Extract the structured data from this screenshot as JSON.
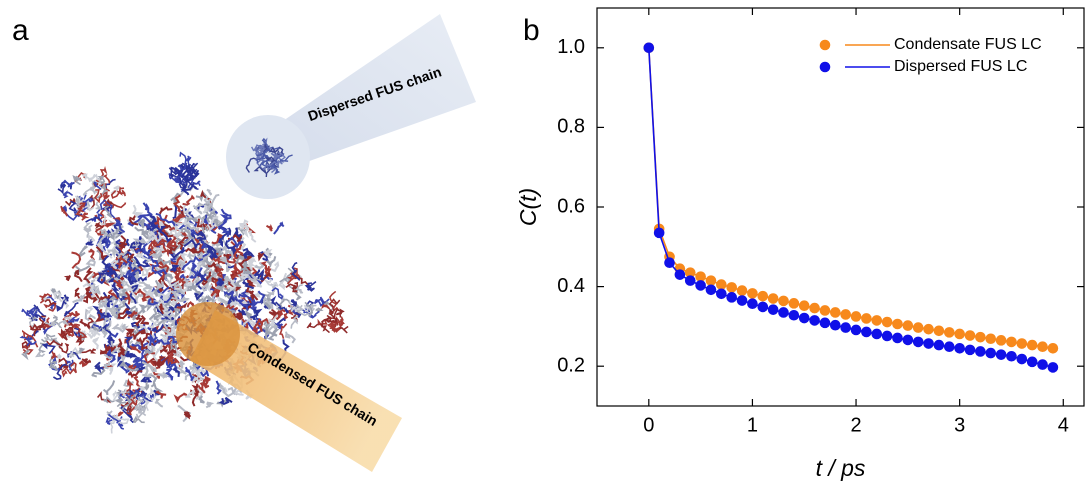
{
  "panel_a": {
    "label": "a",
    "annotations": [
      "Dispersed FUS chain",
      "Condensed FUS chain"
    ]
  },
  "chart_data": {
    "type": "line",
    "panel_label": "b",
    "x": [
      0,
      0.1,
      0.2,
      0.3,
      0.4,
      0.5,
      0.6,
      0.7,
      0.8,
      0.9,
      1.0,
      1.1,
      1.2,
      1.3,
      1.4,
      1.5,
      1.6,
      1.7,
      1.8,
      1.9,
      2.0,
      2.1,
      2.2,
      2.3,
      2.4,
      2.5,
      2.6,
      2.7,
      2.8,
      2.9,
      3.0,
      3.1,
      3.2,
      3.3,
      3.4,
      3.5,
      3.6,
      3.7,
      3.8,
      3.9
    ],
    "series": [
      {
        "name": "Condensate FUS LC",
        "color": "#f7891c",
        "values": [
          1.0,
          0.545,
          0.475,
          0.445,
          0.435,
          0.425,
          0.415,
          0.405,
          0.398,
          0.39,
          0.383,
          0.376,
          0.37,
          0.364,
          0.358,
          0.352,
          0.346,
          0.34,
          0.335,
          0.33,
          0.325,
          0.32,
          0.315,
          0.311,
          0.306,
          0.302,
          0.297,
          0.293,
          0.289,
          0.285,
          0.281,
          0.277,
          0.273,
          0.269,
          0.265,
          0.261,
          0.257,
          0.253,
          0.249,
          0.245
        ]
      },
      {
        "name": "Dispersed FUS LC",
        "color": "#1010e8",
        "values": [
          1.0,
          0.535,
          0.46,
          0.43,
          0.415,
          0.403,
          0.392,
          0.382,
          0.373,
          0.365,
          0.357,
          0.349,
          0.342,
          0.335,
          0.328,
          0.321,
          0.315,
          0.309,
          0.303,
          0.297,
          0.291,
          0.286,
          0.281,
          0.276,
          0.271,
          0.266,
          0.261,
          0.257,
          0.253,
          0.249,
          0.245,
          0.241,
          0.237,
          0.233,
          0.229,
          0.225,
          0.218,
          0.211,
          0.204,
          0.197
        ]
      }
    ],
    "xlabel": "t / ps",
    "ylabel": "C(t)",
    "xlim": [
      -0.5,
      4.2
    ],
    "ylim": [
      0.1,
      1.1
    ],
    "xticks": [
      0,
      1,
      2,
      3,
      4
    ],
    "yticks": [
      0.2,
      0.4,
      0.6,
      0.8,
      {
        "value": 1,
        "label": "1.0"
      }
    ],
    "legend": "upper right",
    "markers": true
  }
}
